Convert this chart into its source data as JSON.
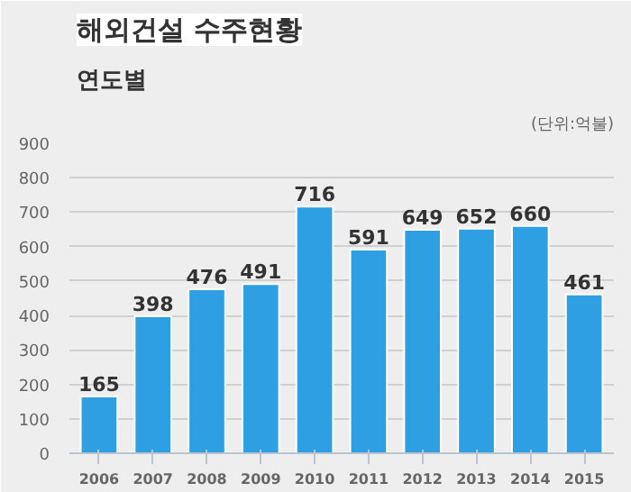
{
  "chart_data": {
    "type": "bar",
    "title": "해외건설 수주현황",
    "subtitle": "연도별",
    "annotations": [
      "(단위:억불)"
    ],
    "categories": [
      "2006",
      "2007",
      "2008",
      "2009",
      "2010",
      "2011",
      "2012",
      "2013",
      "2014",
      "2015"
    ],
    "values": [
      165,
      398,
      476,
      491,
      716,
      591,
      649,
      652,
      660,
      461
    ],
    "color": "#2f9fe3",
    "ylim": [
      0,
      900
    ],
    "yticks": [
      0,
      100,
      200,
      300,
      400,
      500,
      600,
      700,
      800,
      900
    ],
    "grid": "y",
    "data_labels": true
  }
}
